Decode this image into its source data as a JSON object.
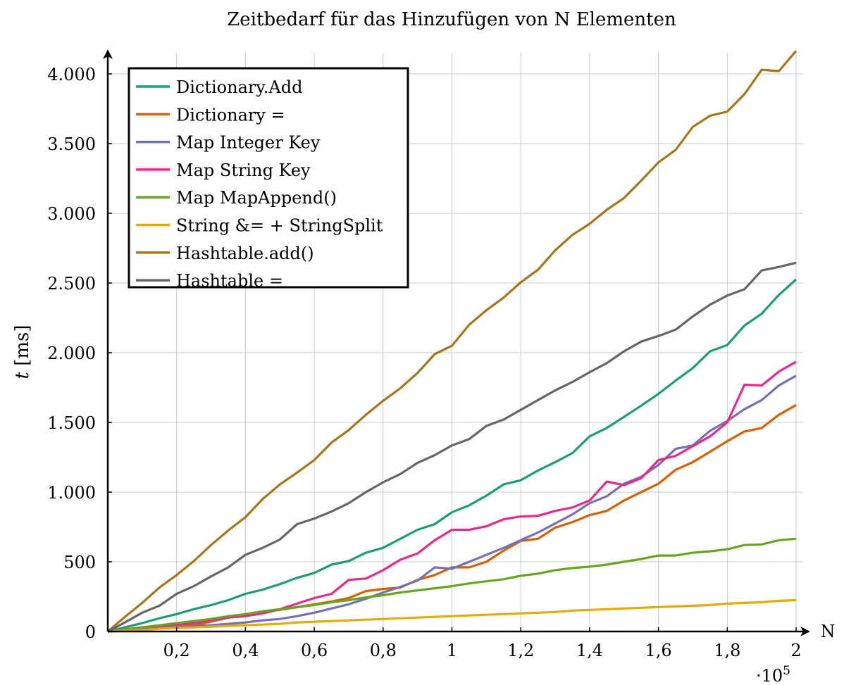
{
  "chart_data": {
    "type": "line",
    "title": "Zeitbedarf für das Hinzufügen von N Elementen",
    "xlabel": "N",
    "x_multiplier": "·10",
    "x_multiplier_exp": "5",
    "ylabel_var": "t",
    "ylabel_unit": "[ms]",
    "xlim": [
      0,
      2
    ],
    "ylim": [
      0,
      4165
    ],
    "grid": true,
    "legend_position": "top-left",
    "xticks": [
      0.2,
      0.4,
      0.6,
      0.8,
      1,
      1.2,
      1.4,
      1.6,
      1.8,
      2
    ],
    "xtick_labels": [
      "0,2",
      "0,4",
      "0,6",
      "0,8",
      "1",
      "1,2",
      "1,4",
      "1,6",
      "1,8",
      "2"
    ],
    "yticks": [
      0,
      500,
      1000,
      1500,
      2000,
      2500,
      3000,
      3500,
      4000
    ],
    "ytick_labels": [
      "0",
      "500",
      "1.000",
      "1.500",
      "2.000",
      "2.500",
      "3.000",
      "3.500",
      "4.000"
    ],
    "x": [
      0,
      0.05,
      0.1,
      0.15,
      0.2,
      0.25,
      0.3,
      0.35,
      0.4,
      0.45,
      0.5,
      0.55,
      0.6,
      0.65,
      0.7,
      0.75,
      0.8,
      0.85,
      0.9,
      0.95,
      1,
      1.05,
      1.1,
      1.15,
      1.2,
      1.25,
      1.3,
      1.35,
      1.4,
      1.45,
      1.5,
      1.55,
      1.6,
      1.65,
      1.7,
      1.75,
      1.8,
      1.85,
      1.9,
      1.95,
      2
    ],
    "series": [
      {
        "name": "Dictionary.Add",
        "color": "#1b9e77",
        "values": [
          0,
          30,
          60,
          95,
          125,
          160,
          190,
          225,
          270,
          300,
          340,
          385,
          420,
          480,
          505,
          565,
          600,
          665,
          730,
          770,
          855,
          905,
          975,
          1055,
          1085,
          1155,
          1215,
          1280,
          1400,
          1460,
          1540,
          1620,
          1705,
          1800,
          1890,
          2010,
          2055,
          2195,
          2280,
          2415,
          2525
        ]
      },
      {
        "name": "Dictionary =",
        "color": "#d95f02",
        "values": [
          0,
          10,
          20,
          30,
          40,
          45,
          70,
          100,
          110,
          140,
          155,
          175,
          195,
          215,
          240,
          290,
          305,
          315,
          370,
          405,
          460,
          460,
          500,
          580,
          650,
          665,
          745,
          785,
          835,
          865,
          940,
          1000,
          1060,
          1160,
          1215,
          1290,
          1365,
          1435,
          1460,
          1555,
          1625
        ]
      },
      {
        "name": "Map Integer Key",
        "color": "#7570b3",
        "values": [
          0,
          5,
          15,
          25,
          30,
          40,
          45,
          55,
          65,
          80,
          90,
          110,
          135,
          165,
          195,
          235,
          280,
          320,
          365,
          460,
          450,
          500,
          550,
          600,
          655,
          710,
          775,
          840,
          920,
          970,
          1060,
          1110,
          1195,
          1310,
          1335,
          1440,
          1510,
          1595,
          1660,
          1765,
          1835
        ]
      },
      {
        "name": "Map String Key",
        "color": "#e7298a",
        "values": [
          0,
          15,
          30,
          40,
          50,
          60,
          80,
          100,
          110,
          130,
          160,
          200,
          240,
          270,
          370,
          380,
          440,
          515,
          560,
          655,
          730,
          730,
          755,
          805,
          825,
          830,
          865,
          890,
          940,
          1075,
          1050,
          1100,
          1230,
          1260,
          1330,
          1400,
          1500,
          1770,
          1765,
          1865,
          1935
        ]
      },
      {
        "name": "Map MapAppend()",
        "color": "#66a61e",
        "values": [
          0,
          15,
          30,
          45,
          60,
          75,
          90,
          110,
          125,
          145,
          160,
          175,
          190,
          210,
          225,
          245,
          260,
          280,
          295,
          310,
          325,
          345,
          360,
          375,
          400,
          415,
          440,
          455,
          465,
          480,
          500,
          520,
          545,
          545,
          565,
          575,
          590,
          620,
          625,
          655,
          665
        ]
      },
      {
        "name": "String &= + StringSplit",
        "color": "#e6ab02",
        "values": [
          0,
          5,
          10,
          20,
          25,
          30,
          35,
          40,
          45,
          50,
          55,
          65,
          70,
          75,
          80,
          85,
          90,
          95,
          100,
          105,
          110,
          115,
          120,
          125,
          130,
          135,
          140,
          150,
          155,
          160,
          165,
          170,
          175,
          180,
          185,
          190,
          200,
          205,
          210,
          220,
          225
        ]
      },
      {
        "name": "Hashtable.add()",
        "color": "#a6761d",
        "values": [
          0,
          105,
          205,
          315,
          405,
          505,
          620,
          725,
          820,
          950,
          1055,
          1140,
          1230,
          1355,
          1445,
          1555,
          1655,
          1745,
          1855,
          1990,
          2050,
          2200,
          2305,
          2395,
          2505,
          2595,
          2735,
          2845,
          2925,
          3025,
          3110,
          3235,
          3365,
          3455,
          3620,
          3700,
          3730,
          3855,
          4030,
          4020,
          4165
        ]
      },
      {
        "name": "Hashtable =",
        "color": "#666666",
        "values": [
          0,
          65,
          135,
          185,
          270,
          325,
          395,
          460,
          550,
          600,
          660,
          770,
          810,
          860,
          920,
          1000,
          1070,
          1130,
          1210,
          1265,
          1335,
          1380,
          1475,
          1520,
          1590,
          1660,
          1730,
          1790,
          1860,
          1925,
          2010,
          2080,
          2120,
          2165,
          2260,
          2345,
          2410,
          2455,
          2590,
          2615,
          2645
        ]
      }
    ]
  }
}
